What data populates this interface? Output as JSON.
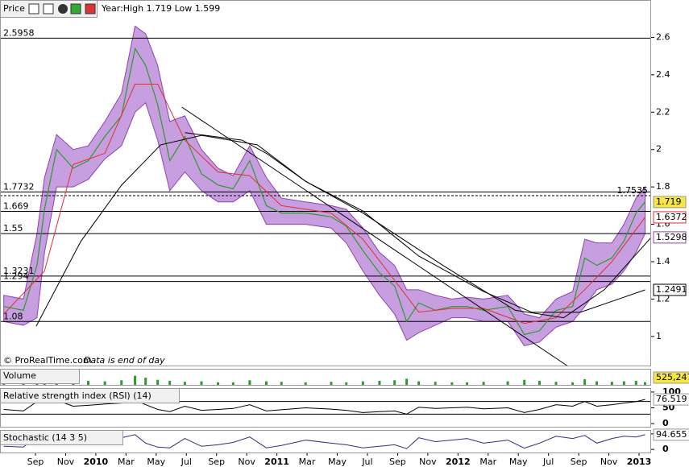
{
  "chart_data": [
    {
      "type": "line",
      "title": "Price",
      "subtitle": "Year:High 1.719 Low 1.599",
      "notes": [
        "© ProRealTime.com",
        "Data is end of day"
      ],
      "xlim": [
        -2.35,
        40.8
      ],
      "ylim": [
        0.84,
        2.8
      ],
      "yticks": [
        1,
        1.2,
        1.4,
        1.6,
        1.8,
        2,
        2.2,
        2.4,
        2.6
      ],
      "levels": [
        2.5958,
        1.7732,
        1.669,
        1.55,
        1.3231,
        1.294,
        1.08
      ],
      "dashed_levels": [
        1.7535
      ],
      "x": [
        -2.1,
        -0.8,
        0.1,
        0.6,
        1.4,
        2.5,
        3.5,
        4.6,
        5.7,
        6.6,
        7.3,
        8.1,
        8.9,
        9.9,
        11.0,
        12.1,
        13.1,
        14.2,
        15.3,
        16.3,
        17.9,
        19.6,
        20.6,
        21.7,
        22.8,
        23.8,
        24.6,
        25.4,
        26.5,
        27.6,
        28.6,
        29.7,
        31.3,
        32.4,
        33.4,
        34.5,
        35.6,
        36.4,
        37.2,
        38.2,
        39.0,
        39.8,
        40.4
      ],
      "band": {
        "color": "#c79ee0",
        "stroke": "#8e44ad",
        "upper": [
          1.22,
          1.2,
          1.55,
          1.85,
          2.08,
          2.0,
          2.02,
          2.15,
          2.3,
          2.66,
          2.62,
          2.45,
          2.15,
          2.18,
          2.0,
          1.9,
          1.86,
          2.02,
          1.85,
          1.74,
          1.72,
          1.7,
          1.68,
          1.58,
          1.45,
          1.38,
          1.25,
          1.25,
          1.22,
          1.2,
          1.21,
          1.2,
          1.22,
          1.12,
          1.1,
          1.2,
          1.24,
          1.52,
          1.5,
          1.5,
          1.6,
          1.74,
          1.8
        ],
        "lower": [
          1.08,
          1.06,
          1.1,
          1.45,
          1.8,
          1.8,
          1.84,
          1.95,
          2.02,
          2.2,
          2.25,
          2.05,
          1.78,
          1.88,
          1.78,
          1.72,
          1.72,
          1.78,
          1.6,
          1.6,
          1.6,
          1.58,
          1.5,
          1.35,
          1.22,
          1.12,
          0.98,
          1.02,
          1.06,
          1.1,
          1.1,
          1.08,
          1.08,
          0.95,
          0.97,
          1.05,
          1.08,
          1.16,
          1.25,
          1.28,
          1.35,
          1.45,
          1.55
        ]
      },
      "series": [
        {
          "color": "#2e9a2e",
          "values": [
            1.16,
            1.14,
            1.38,
            1.68,
            2.0,
            1.9,
            1.94,
            2.07,
            2.18,
            2.54,
            2.45,
            2.24,
            1.94,
            2.07,
            1.87,
            1.81,
            1.79,
            1.94,
            1.7,
            1.66,
            1.66,
            1.64,
            1.59,
            1.46,
            1.34,
            1.27,
            1.08,
            1.18,
            1.14,
            1.16,
            1.16,
            1.14,
            1.16,
            1.01,
            1.03,
            1.14,
            1.16,
            1.42,
            1.38,
            1.42,
            1.51,
            1.66,
            1.72
          ]
        },
        {
          "color": "#e03030",
          "x": [
            -2.1,
            0.6,
            2.5,
            4.6,
            6.6,
            8.1,
            9.9,
            12.1,
            14.2,
            16.3,
            19.6,
            21.7,
            23.8,
            25.4,
            27.6,
            29.7,
            32.4,
            34.5,
            36.4,
            38.2,
            40.4
          ],
          "values": [
            1.12,
            1.35,
            1.92,
            1.98,
            2.35,
            2.35,
            2.05,
            1.88,
            1.86,
            1.7,
            1.66,
            1.52,
            1.3,
            1.13,
            1.15,
            1.15,
            1.07,
            1.1,
            1.25,
            1.4,
            1.6372
          ]
        },
        {
          "color": "#000000",
          "x": [
            0.05,
            3.0,
            5.7,
            8.3,
            11.0,
            14.7,
            17.9,
            21.7,
            25.4,
            29.7,
            32.9,
            36.1,
            40.4
          ],
          "values": [
            1.055,
            1.508,
            1.809,
            2.025,
            2.076,
            2.025,
            1.83,
            1.671,
            1.43,
            1.24,
            1.129,
            1.129,
            1.2491
          ]
        },
        {
          "color": "#000000",
          "x": [
            9.9,
            13.7,
            15.3,
            17.9,
            21.7,
            27.0,
            31.8,
            35.0,
            37.7,
            40.8
          ],
          "values": [
            2.09,
            2.05,
            1.98,
            1.83,
            1.66,
            1.38,
            1.14,
            1.1,
            1.25,
            1.5298
          ]
        },
        {
          "color": "#000000",
          "x": [
            9.7,
            35.3
          ],
          "values": [
            2.227,
            0.84
          ]
        }
      ],
      "last_values": [
        {
          "value": 1.719,
          "color": "#f5e642"
        },
        {
          "value": 1.6372,
          "color": "#e03030"
        },
        {
          "value": 1.5298,
          "color": "#8e44ad"
        },
        {
          "value": 1.2491,
          "color": "#000000"
        }
      ],
      "xticks": [
        {
          "value": 0,
          "label": "Sep"
        },
        {
          "value": 2,
          "label": "Nov"
        },
        {
          "value": 4,
          "label": "2010"
        },
        {
          "value": 6,
          "label": "Mar"
        },
        {
          "value": 8,
          "label": "May"
        },
        {
          "value": 10,
          "label": "Jul"
        },
        {
          "value": 12,
          "label": "Sep"
        },
        {
          "value": 14,
          "label": "Nov"
        },
        {
          "value": 16,
          "label": "2011"
        },
        {
          "value": 18,
          "label": "Mar"
        },
        {
          "value": 20,
          "label": "May"
        },
        {
          "value": 22,
          "label": "Jul"
        },
        {
          "value": 24,
          "label": "Sep"
        },
        {
          "value": 26,
          "label": "Nov"
        },
        {
          "value": 28,
          "label": "2012"
        },
        {
          "value": 30,
          "label": "Mar"
        },
        {
          "value": 32,
          "label": "May"
        },
        {
          "value": 34,
          "label": "Jul"
        },
        {
          "value": 36,
          "label": "Sep"
        },
        {
          "value": 38,
          "label": "Nov"
        },
        {
          "value": 40,
          "label": "2013"
        }
      ]
    },
    {
      "type": "bar",
      "title": "Volume",
      "color": "#2e9a2e",
      "ylim": [
        0,
        3000000
      ],
      "values": [
        600000,
        400000,
        900000,
        1200000,
        1500000,
        1000000,
        800000,
        700000,
        900000,
        1800000,
        1400000,
        1000000,
        800000,
        600000,
        700000,
        500000,
        500000,
        900000,
        700000,
        600000,
        500000,
        600000,
        500000,
        700000,
        800000,
        900000,
        1200000,
        700000,
        600000,
        500000,
        500000,
        600000,
        700000,
        1000000,
        800000,
        600000,
        500000,
        1100000,
        700000,
        600000,
        700000,
        800000,
        525247
      ],
      "last": {
        "value": 525247,
        "label": "525,247"
      }
    },
    {
      "type": "line",
      "title": "Relative strength index (RSI) (14)",
      "color": "#000000",
      "ylim": [
        -10,
        110
      ],
      "yticks": [
        0,
        50,
        100
      ],
      "levels": [
        70,
        30
      ],
      "values": [
        45,
        40,
        70,
        72,
        74,
        55,
        58,
        62,
        65,
        75,
        60,
        45,
        38,
        55,
        42,
        45,
        48,
        60,
        40,
        44,
        50,
        46,
        42,
        35,
        38,
        40,
        30,
        52,
        48,
        50,
        52,
        47,
        50,
        35,
        45,
        60,
        55,
        70,
        55,
        60,
        65,
        70,
        76.519
      ]
    },
    {
      "type": "line",
      "title": "Stochastic (14 3 5)",
      "color": "#3b2a7a",
      "ylim": [
        -20,
        120
      ],
      "yticks": [
        0,
        100
      ],
      "values": [
        20,
        15,
        85,
        90,
        92,
        30,
        60,
        80,
        75,
        95,
        40,
        15,
        10,
        70,
        20,
        30,
        45,
        80,
        10,
        25,
        60,
        40,
        30,
        10,
        20,
        30,
        5,
        75,
        50,
        60,
        70,
        40,
        60,
        8,
        40,
        85,
        70,
        90,
        40,
        70,
        85,
        80,
        94.655
      ]
    }
  ]
}
